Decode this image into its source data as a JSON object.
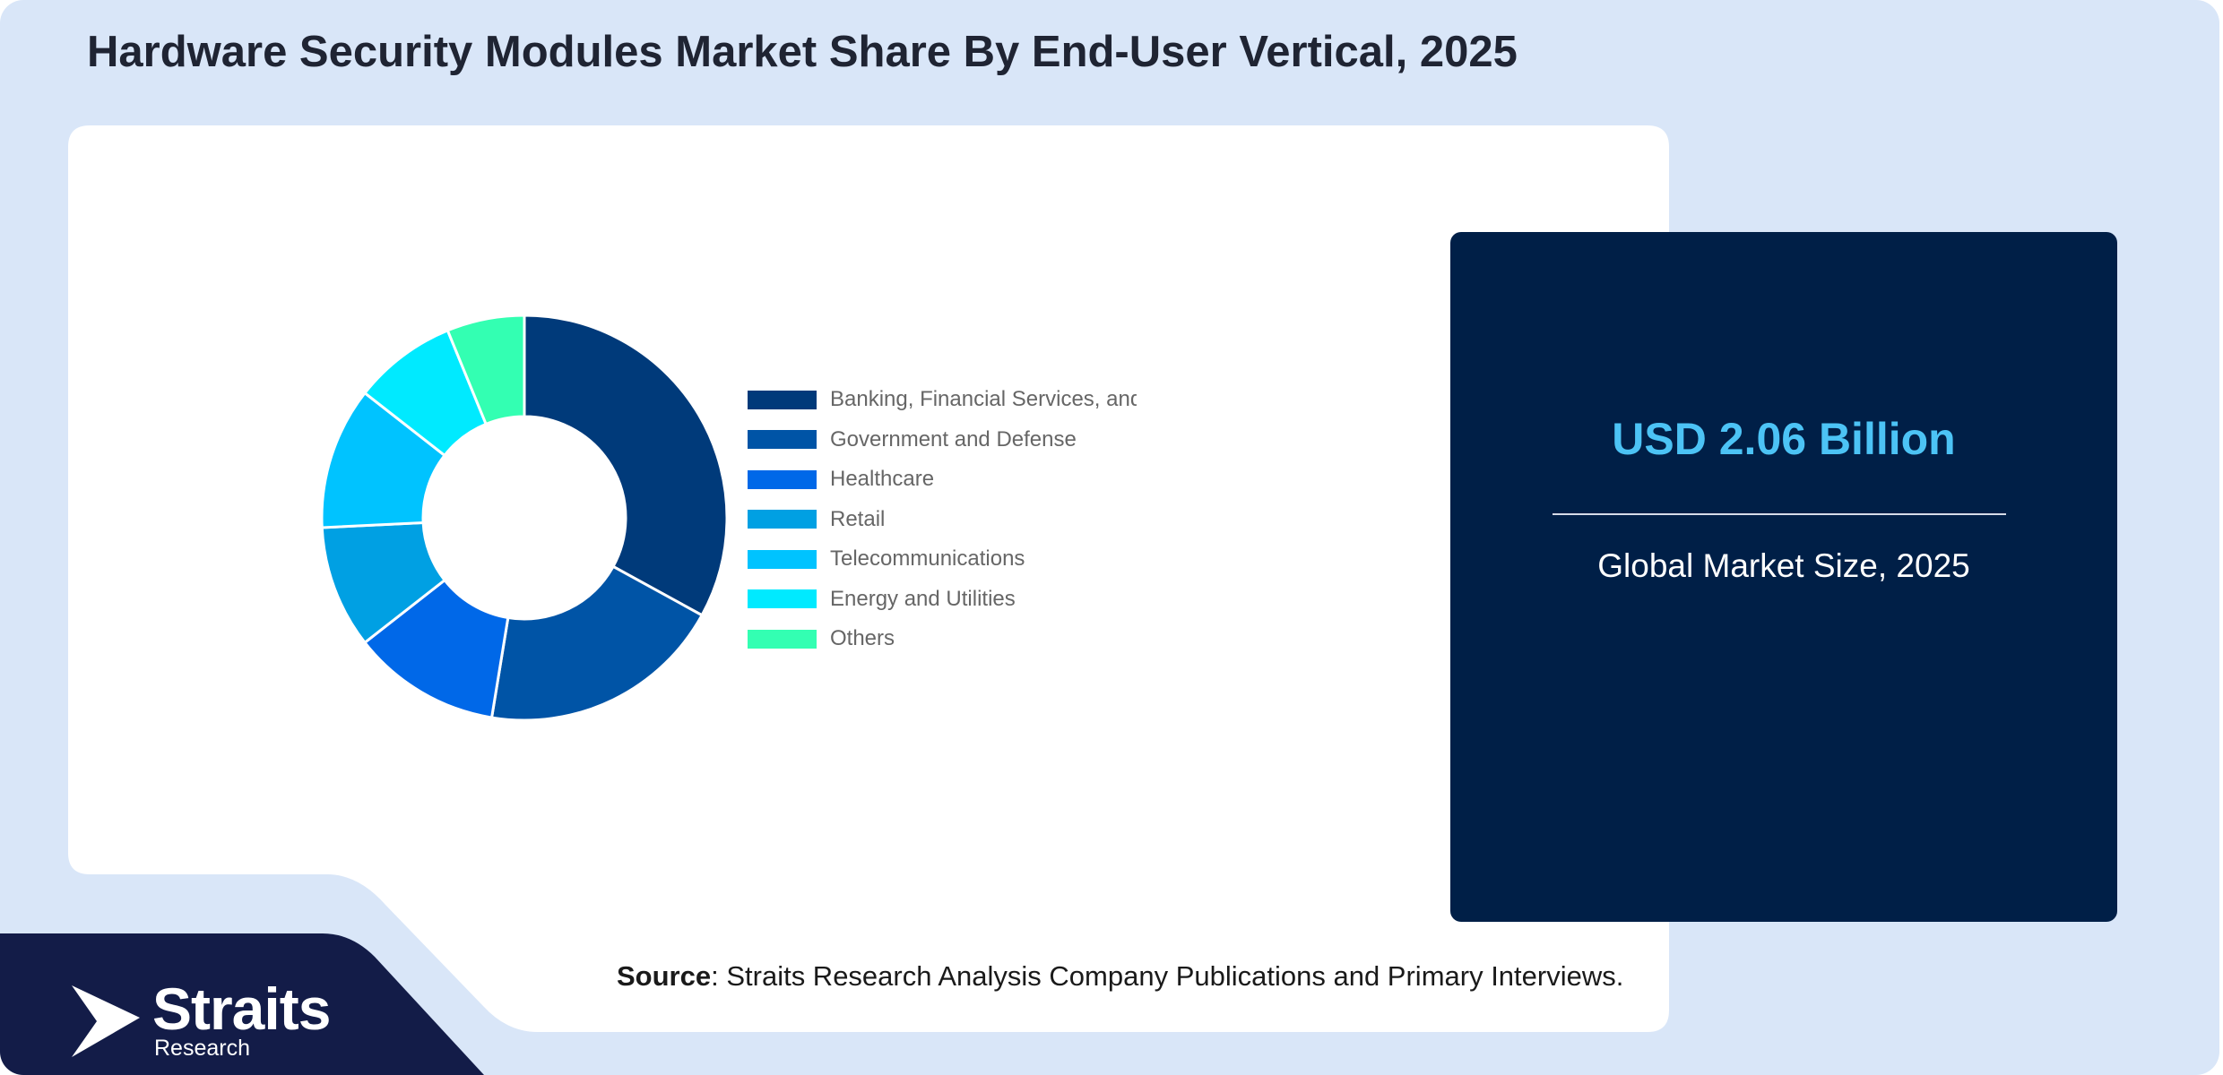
{
  "title": "Hardware Security Modules Market Share By End-User Vertical, 2025",
  "chart_data": {
    "type": "pie",
    "subtype": "donut",
    "categories": [
      "Banking, Financial Services, and Insurance",
      "Government and Defense",
      "Healthcare",
      "Retail",
      "Telecommunications",
      "Energy and Utilities",
      "Others"
    ],
    "legend_display": [
      "Banking, Financial Services, and",
      "Government and Defense",
      "Healthcare",
      "Retail",
      "Telecommunications",
      "Energy and Utilities",
      "Others"
    ],
    "values": [
      32,
      19,
      11.5,
      9.5,
      11,
      8,
      6
    ],
    "colors": [
      "#003a7a",
      "#0054a6",
      "#0068e8",
      "#00a0e3",
      "#00c3ff",
      "#00eaff",
      "#33ffb2"
    ],
    "legend_position": "right"
  },
  "stat": {
    "value": "USD 2.06 Billion",
    "label": "Global Market Size, 2025"
  },
  "source": {
    "prefix": "Source",
    "text": ": Straits Research Analysis Company Publications and Primary Interviews."
  },
  "brand": {
    "name": "Straits",
    "sub": "Research"
  }
}
